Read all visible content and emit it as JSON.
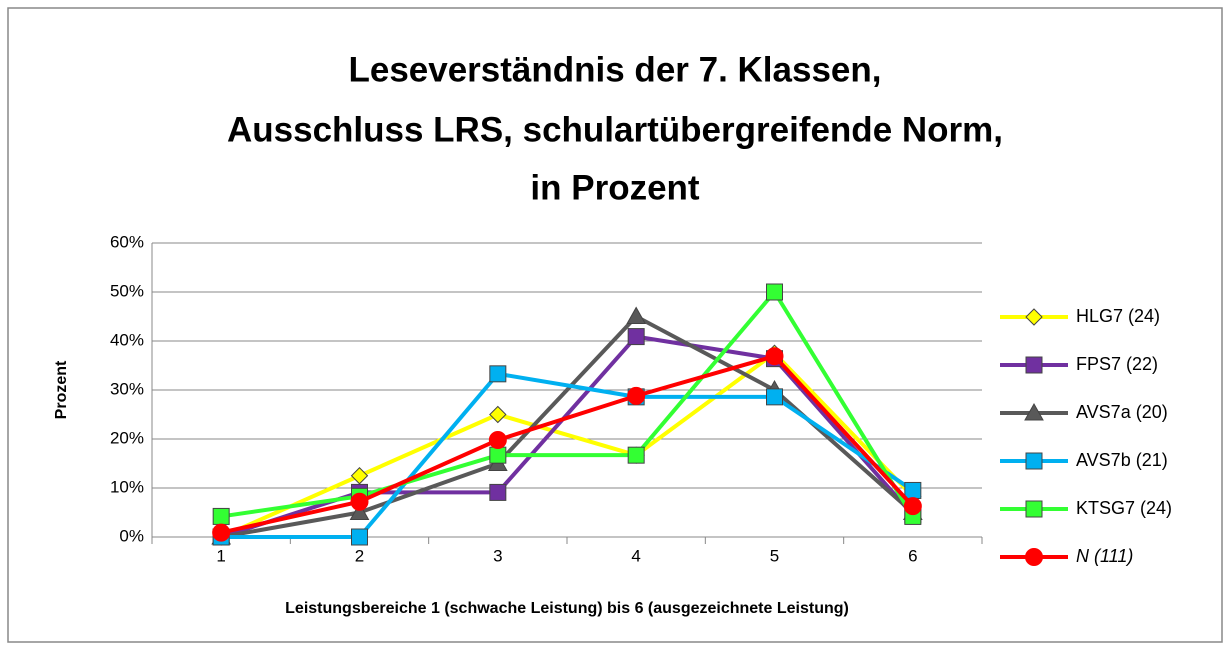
{
  "chart_data": {
    "type": "line",
    "title": [
      "Leseverständnis der 7. Klassen,",
      "Ausschluss LRS, schulartübergreifende Norm,",
      "in Prozent"
    ],
    "x_label": "Leistungsbereiche 1 (schwache Leistung) bis 6 (ausgezeichnete Leistung)",
    "y_label": "Prozent",
    "categories": [
      "1",
      "2",
      "3",
      "4",
      "5",
      "6"
    ],
    "ylim": [
      0,
      60
    ],
    "yticks": [
      {
        "value": 0,
        "label": "0%"
      },
      {
        "value": 10,
        "label": "10%"
      },
      {
        "value": 20,
        "label": "20%"
      },
      {
        "value": 30,
        "label": "30%"
      },
      {
        "value": 40,
        "label": "40%"
      },
      {
        "value": 50,
        "label": "50%"
      },
      {
        "value": 60,
        "label": "60%"
      }
    ],
    "grid": true,
    "legend": "right",
    "series": [
      {
        "name": "HLG7 (24)",
        "color": "#ffff00",
        "marker": "diamond",
        "values": [
          0,
          12.5,
          25,
          16.7,
          37.5,
          8.3
        ]
      },
      {
        "name": "FPS7 (22)",
        "color": "#7030a0",
        "marker": "square",
        "values": [
          0,
          9.1,
          9.1,
          40.9,
          36.4,
          4.5
        ]
      },
      {
        "name": "AVS7a (20)",
        "color": "#595959",
        "marker": "triangle",
        "values": [
          0,
          5,
          15,
          45,
          30,
          5
        ]
      },
      {
        "name": "AVS7b (21)",
        "color": "#00b0f0",
        "marker": "square",
        "values": [
          0,
          0,
          33.3,
          28.6,
          28.6,
          9.5
        ]
      },
      {
        "name": "KTSG7 (24)",
        "color": "#33ff33",
        "marker": "square",
        "values": [
          4.2,
          8.3,
          16.7,
          16.7,
          50,
          4.2
        ]
      },
      {
        "name": "N (111)",
        "color": "#ff0000",
        "marker": "circle",
        "italic": true,
        "values": [
          0.9,
          7.2,
          19.8,
          28.8,
          36.9,
          6.3
        ]
      }
    ]
  }
}
